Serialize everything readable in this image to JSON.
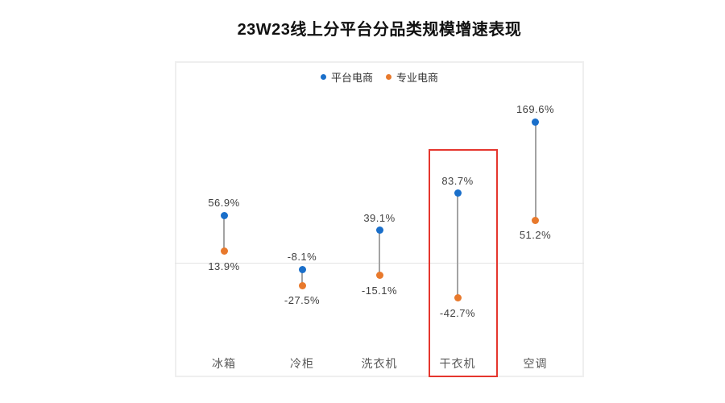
{
  "chart_data": {
    "type": "scatter",
    "variant": "dumbbell-range",
    "title": "23W23线上分平台分品类规模增速表现",
    "categories": [
      "冰箱",
      "冷柜",
      "洗衣机",
      "干衣机",
      "空调"
    ],
    "series": [
      {
        "name": "平台电商",
        "color": "#1a6fca",
        "values": [
          56.9,
          -8.1,
          39.1,
          83.7,
          169.6
        ],
        "labels": [
          "56.9%",
          "-8.1%",
          "39.1%",
          "83.7%",
          "169.6%"
        ]
      },
      {
        "name": "专业电商",
        "color": "#e8792c",
        "values": [
          13.9,
          -27.5,
          -15.1,
          -42.7,
          51.2
        ],
        "labels": [
          "13.9%",
          "-27.5%",
          "-15.1%",
          "-42.7%",
          "51.2%"
        ]
      }
    ],
    "ylabel": "",
    "xlabel": "",
    "grid": "zero-line-only",
    "legend_position": "top-center",
    "annotations": [
      {
        "kind": "highlight-rectangle",
        "category": "干衣机",
        "color": "#e5362e"
      }
    ]
  },
  "colors": {
    "platform_blue": "#1a6fca",
    "specialty_orange": "#e8792c",
    "connector_gray": "#a3a3a3",
    "zero_line": "#e4e4e4",
    "plot_border": "#efefef",
    "highlight_red": "#e5362e",
    "value_text": "#3f3f3f",
    "category_text": "#595959"
  }
}
